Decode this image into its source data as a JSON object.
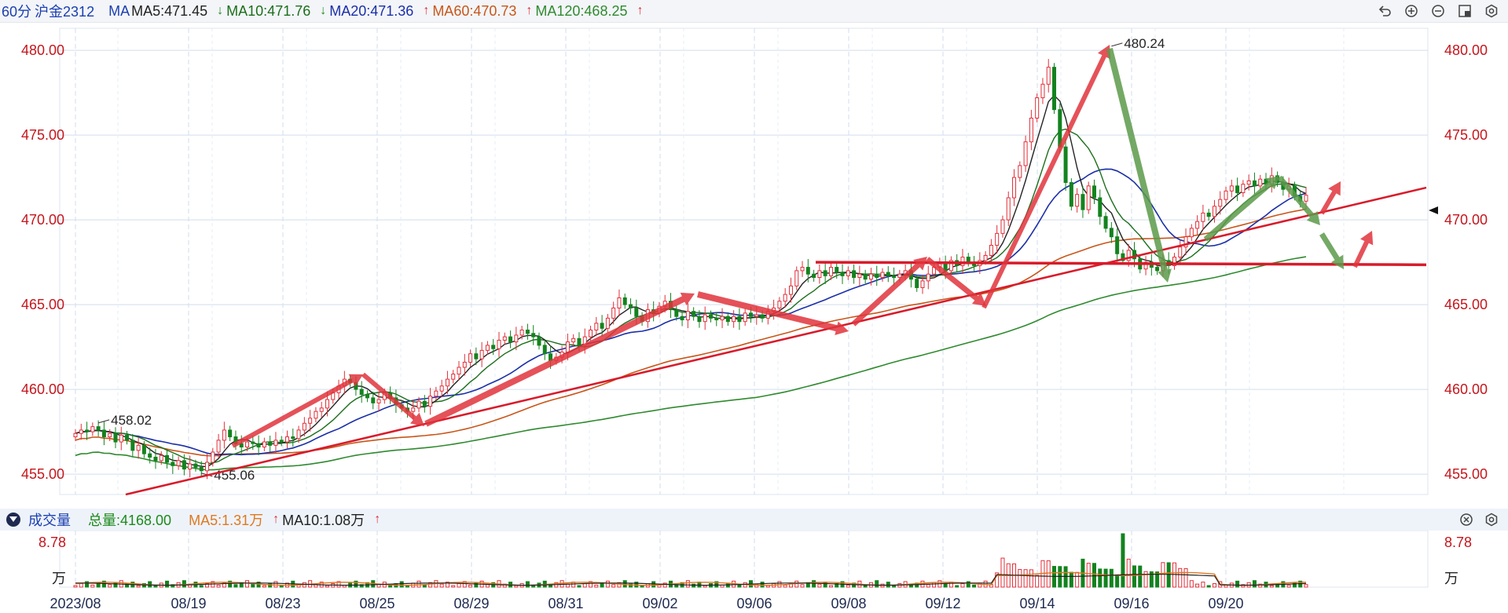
{
  "header": {
    "period": "60分",
    "symbol": "沪金2312",
    "ma_label": "MA",
    "ma5": "MA5:471.45",
    "ma10": "MA10:471.76",
    "ma20": "MA20:471.36",
    "ma60": "MA60:470.73",
    "ma120": "MA120:468.25",
    "arrow_up": "↑",
    "arrow_down": "↓",
    "tools": [
      "undo-icon",
      "zoom-in-icon",
      "zoom-out-icon",
      "layout-icon",
      "settings-icon"
    ]
  },
  "volume_header": {
    "collapse_icon": "collapse-triangle-icon",
    "title": "成交量",
    "total": "总量:4168.00",
    "ma5": "MA5:1.31万",
    "ma10": "MA10:1.08万",
    "tools": [
      "close-circle-icon",
      "settings-icon"
    ]
  },
  "colors": {
    "up": "#e0303a",
    "down": "#13831f",
    "ma5": "#222222",
    "ma10": "#1b6e1b",
    "ma20": "#1b2fa8",
    "ma60": "#c8561a",
    "ma120": "#2f8a2f",
    "grid": "#d2deee",
    "axis_text": "#c4161c",
    "date_text": "#1e2a50",
    "annot_red": "#e0343c",
    "annot_green": "#5c9a4a",
    "line_red": "#d81b2a"
  },
  "chart_data": {
    "type": "candlestick",
    "title": "60分 沪金2312",
    "xlabel": "",
    "ylabel": "",
    "ylim": [
      453.8,
      481.3
    ],
    "yticks": [
      "480.00",
      "475.00",
      "470.00",
      "465.00",
      "460.00",
      "455.00"
    ],
    "xticks": [
      "2023/08",
      "08/19",
      "08/23",
      "08/25",
      "08/29",
      "08/31",
      "09/02",
      "09/06",
      "09/08",
      "09/12",
      "09/14",
      "09/16",
      "09/20"
    ],
    "grid": true,
    "annotations": {
      "high": "480.24",
      "low": "455.06",
      "start": "458.02"
    },
    "close_series": [
      457.4,
      457.6,
      457.5,
      457.8,
      457.6,
      457.2,
      457.4,
      456.9,
      457.3,
      457.0,
      456.4,
      456.7,
      456.2,
      456.0,
      455.8,
      456.1,
      455.7,
      455.5,
      455.8,
      455.3,
      455.6,
      455.4,
      455.2,
      455.7,
      456.3,
      457.0,
      457.6,
      457.2,
      456.8,
      456.6,
      456.9,
      456.8,
      456.6,
      456.9,
      456.7,
      457.0,
      456.9,
      457.2,
      457.1,
      457.6,
      458.0,
      458.3,
      458.7,
      458.9,
      459.4,
      459.8,
      460.2,
      460.6,
      460.4,
      460.0,
      459.7,
      459.5,
      459.2,
      459.4,
      459.8,
      459.5,
      459.1,
      458.9,
      458.7,
      458.9,
      459.3,
      459.0,
      459.6,
      459.9,
      460.2,
      460.6,
      460.9,
      461.3,
      461.6,
      462.1,
      461.8,
      462.3,
      462.6,
      462.4,
      462.9,
      463.1,
      462.8,
      463.2,
      463.5,
      463.3,
      463.1,
      462.6,
      462.1,
      461.7,
      461.9,
      462.2,
      462.8,
      463.0,
      462.6,
      463.1,
      463.5,
      463.9,
      463.6,
      464.2,
      464.8,
      465.4,
      465.0,
      464.8,
      464.3,
      464.0,
      464.7,
      464.5,
      464.9,
      465.2,
      464.7,
      464.3,
      464.1,
      464.6,
      464.3,
      464.0,
      464.4,
      464.2,
      464.1,
      464.3,
      464.0,
      464.3,
      464.0,
      464.5,
      464.3,
      464.4,
      464.2,
      464.6,
      464.8,
      465.2,
      465.6,
      466.1,
      467.0,
      467.2,
      466.8,
      466.6,
      467.0,
      466.7,
      467.2,
      466.9,
      466.7,
      467.0,
      466.6,
      466.8,
      466.5,
      466.8,
      466.6,
      466.9,
      466.7,
      466.6,
      466.8,
      467.0,
      466.5,
      466.0,
      466.4,
      466.8,
      467.2,
      467.4,
      467.0,
      467.6,
      467.3,
      467.8,
      467.5,
      467.3,
      467.6,
      467.9,
      468.5,
      469.2,
      470.0,
      471.3,
      472.5,
      473.2,
      474.6,
      476.0,
      477.2,
      478.0,
      479.0,
      476.5,
      474.3,
      472.2,
      470.8,
      471.5,
      470.6,
      472.0,
      471.3,
      470.2,
      469.5,
      469.0,
      468.0,
      467.6,
      468.2,
      467.7,
      467.1,
      467.5,
      467.2,
      467.0,
      467.6,
      467.3,
      467.8,
      468.4,
      469.0,
      469.5,
      469.9,
      470.4,
      470.2,
      470.8,
      471.2,
      471.7,
      472.0,
      471.6,
      472.1,
      472.3,
      472.0,
      472.4,
      472.1,
      472.6,
      472.2,
      471.8,
      472.0,
      471.4,
      471.1,
      471.45
    ],
    "volume": {
      "ylim": [
        0,
        8.78
      ],
      "ytick": "8.78",
      "unit": "万"
    },
    "moving_averages": [
      "MA5",
      "MA10",
      "MA20",
      "MA60",
      "MA120"
    ]
  }
}
